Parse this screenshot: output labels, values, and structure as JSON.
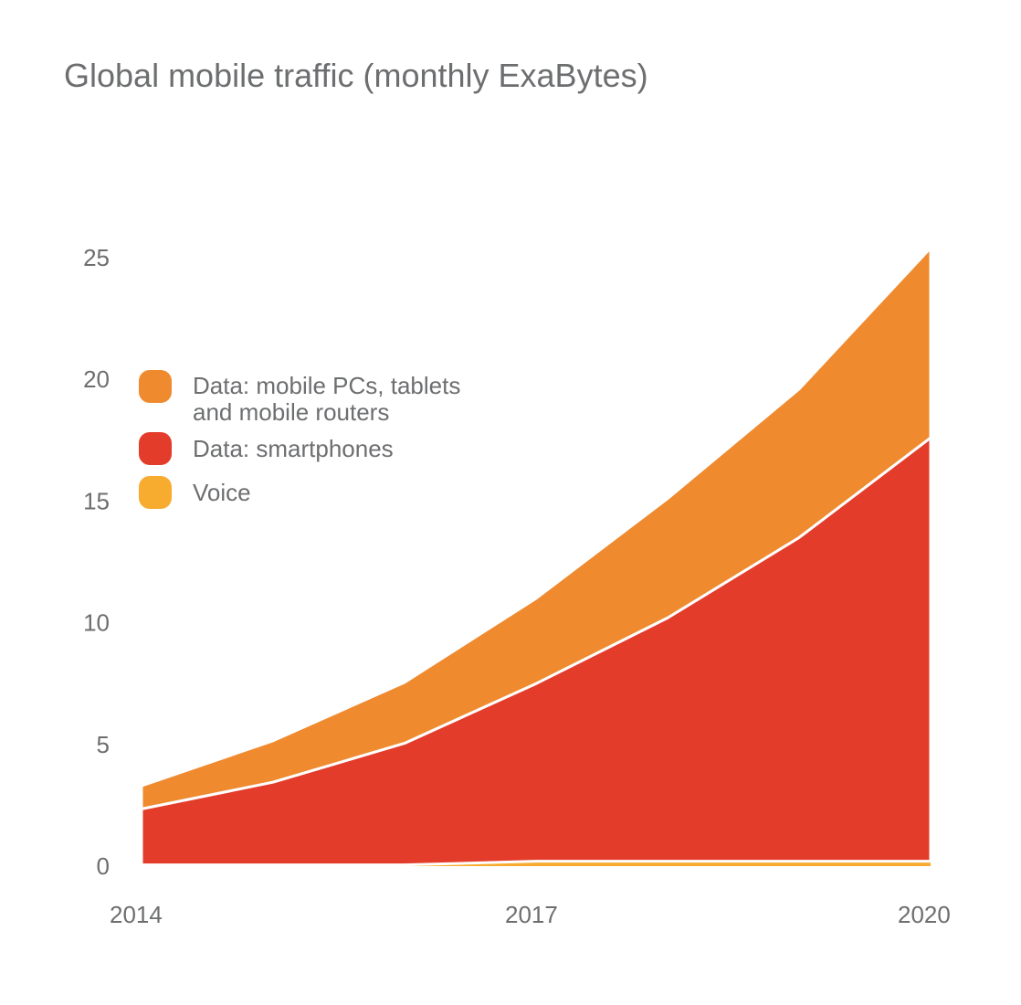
{
  "chart_data": {
    "type": "area",
    "stacked": true,
    "title": "Global mobile traffic (monthly ExaBytes)",
    "xlabel": "",
    "ylabel": "",
    "x": [
      2014,
      2015,
      2016,
      2017,
      2018,
      2019,
      2020
    ],
    "x_ticks": [
      "2014",
      "2017",
      "2020"
    ],
    "y_ticks": [
      "0",
      "5",
      "10",
      "15",
      "20",
      "25"
    ],
    "ylim": [
      0,
      25
    ],
    "grid": false,
    "legend_position": "top-left",
    "series": [
      {
        "name": "Voice",
        "color": "#f7ac2f",
        "values": [
          0.05,
          0.05,
          0.05,
          0.2,
          0.2,
          0.2,
          0.2
        ]
      },
      {
        "name": "Data: smartphones",
        "color": "#e33c2b",
        "values": [
          2.3,
          3.4,
          5.0,
          7.3,
          10.0,
          13.3,
          17.4
        ]
      },
      {
        "name": "Data: mobile PCs, tablets\nand mobile routers",
        "color": "#ef8a2f",
        "values": [
          0.95,
          1.7,
          2.5,
          3.5,
          4.9,
          6.1,
          7.8
        ]
      }
    ]
  }
}
